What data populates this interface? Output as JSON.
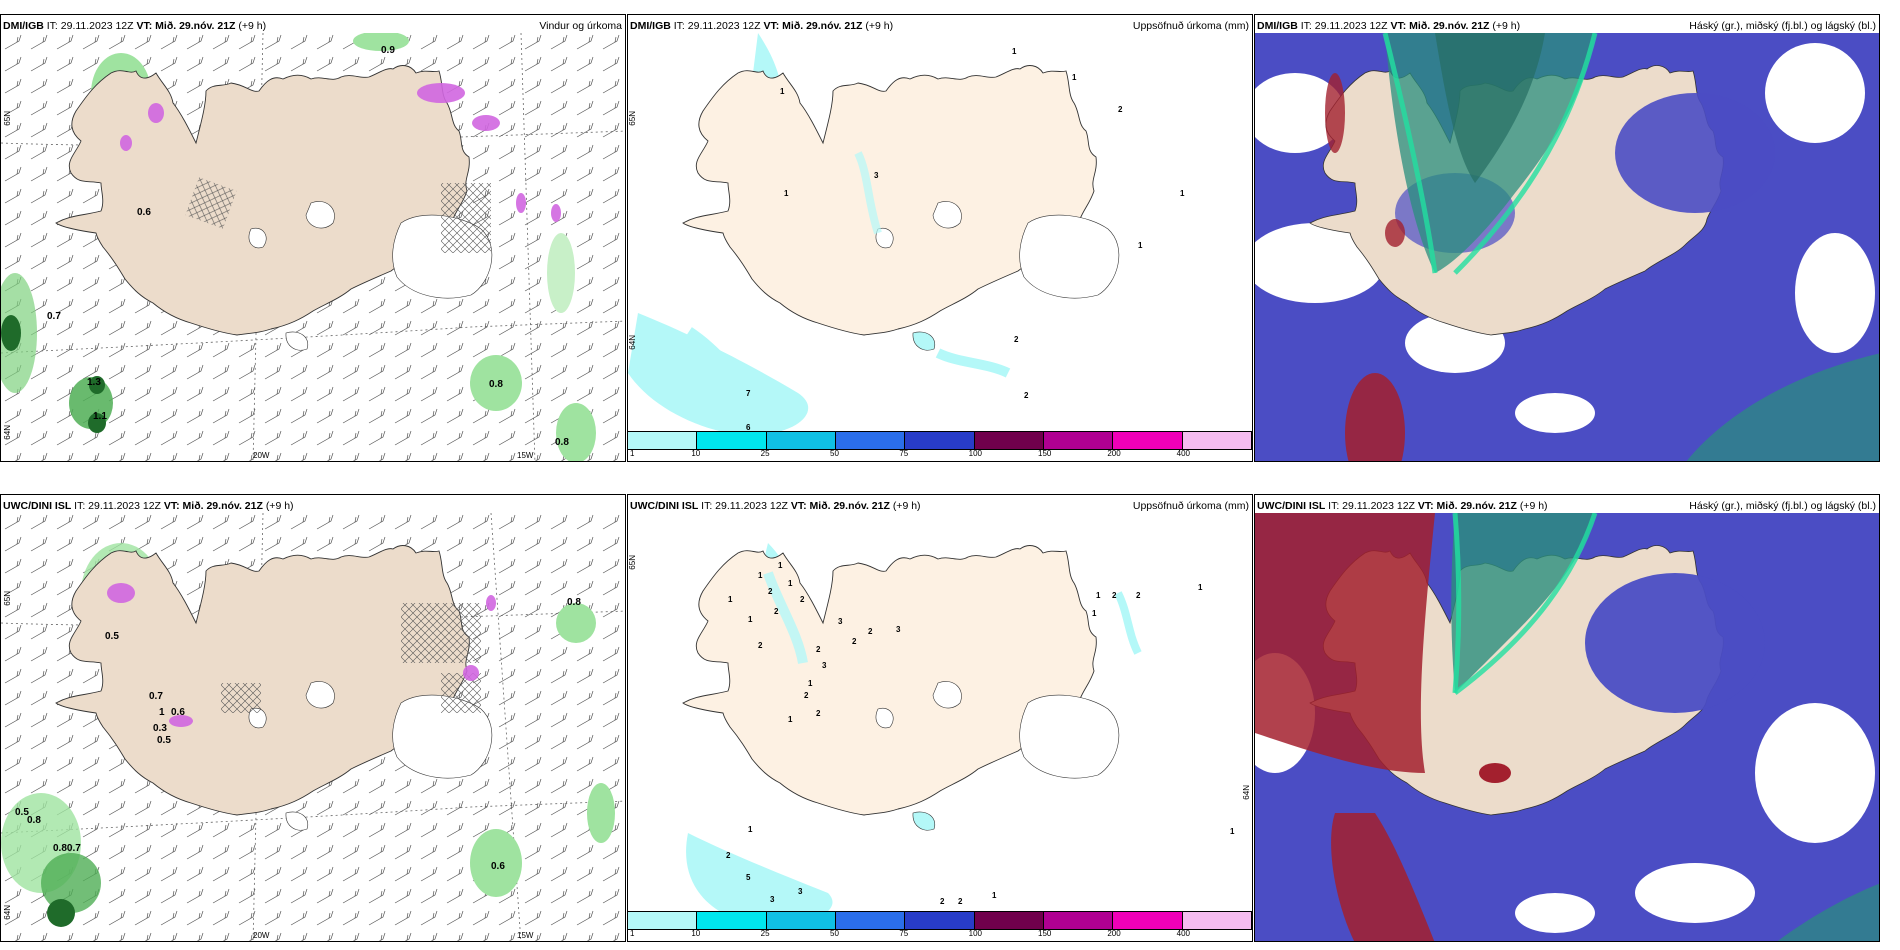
{
  "panels": [
    {
      "model": "DMI/IGB",
      "it": "IT: 29.11.2023 12Z",
      "vt": "VT: Mið. 29.nóv. 21Z",
      "lead": "(+9 h)",
      "product": "Vindur og úrkoma",
      "lat_labels": [
        "65N",
        "64N"
      ],
      "lon_labels": [
        "20W",
        "15W"
      ],
      "values": [
        "0.9",
        "0.6",
        "0.7",
        "1.3",
        "1.1",
        "0.8",
        "0.8"
      ]
    },
    {
      "model": "DMI/IGB",
      "it": "IT: 29.11.2023 12Z",
      "vt": "VT: Mið. 29.nóv. 21Z",
      "lead": "(+9 h)",
      "product": "Uppsöfnuð úrkoma (mm)",
      "lat_labels": [
        "65N",
        "64N"
      ],
      "values": [
        "1",
        "1",
        "2",
        "1",
        "3",
        "1",
        "1",
        "1",
        "2",
        "7",
        "6",
        "2"
      ]
    },
    {
      "model": "DMI/IGB",
      "it": "IT: 29.11.2023 12Z",
      "vt": "VT: Mið. 29.nóv. 21Z",
      "lead": "(+9 h)",
      "product": "Háský (gr.), miðský (fj.bl.) og lágský (bl.)"
    },
    {
      "model": "UWC/DINI ISL",
      "it": "IT: 29.11.2023 12Z",
      "vt": "VT: Mið. 29.nóv. 21Z",
      "lead": "(+9 h)",
      "product": "",
      "lat_labels": [
        "65N",
        "64N"
      ],
      "lon_labels": [
        "20W",
        "15W"
      ],
      "values": [
        "0.8",
        "0.5",
        "0.7",
        "0.6",
        "1",
        "0.3",
        "0.5",
        "0.5",
        "0.8",
        "0.80.7",
        "0.6"
      ]
    },
    {
      "model": "UWC/DINI ISL",
      "it": "IT: 29.11.2023 12Z",
      "vt": "VT: Mið. 29.nóv. 21Z",
      "lead": "(+9 h)",
      "product": "Uppsöfnuð úrkoma (mm)",
      "lat_labels": [
        "65N",
        "64N"
      ],
      "values": [
        "1",
        "1",
        "1",
        "2",
        "2",
        "1",
        "2",
        "3",
        "2",
        "2",
        "3",
        "1",
        "2",
        "2",
        "3",
        "1",
        "2",
        "2",
        "1",
        "1",
        "2",
        "2",
        "1",
        "1",
        "1",
        "2",
        "5",
        "3",
        "3",
        "2",
        "2",
        "1",
        "1"
      ]
    },
    {
      "model": "UWC/DINI ISL",
      "it": "IT: 29.11.2023 12Z",
      "vt": "VT: Mið. 29.nóv. 21Z",
      "lead": "(+9 h)",
      "product": "Háský (gr.), miðský (fj.bl.) og lágský (bl.)"
    }
  ],
  "colorbar": {
    "ticks": [
      "1",
      "10",
      "25",
      "50",
      "75",
      "100",
      "150",
      "200",
      "400"
    ],
    "colors": [
      "#b4f8f8",
      "#00e6ee",
      "#10c0e4",
      "#2b6eea",
      "#283cc8",
      "#70004c",
      "#b00092",
      "#f000b8",
      "#f5bcf0"
    ]
  },
  "colors": {
    "land": "#ecdccb",
    "land_precip": "#fdf1e3",
    "sea_precip": "#b4f8f8",
    "low_cloud": "#4b4dc4",
    "high_cloud": "#2a8f7d",
    "mid_cloud": "#a3202e",
    "green": "#7fd27f"
  }
}
